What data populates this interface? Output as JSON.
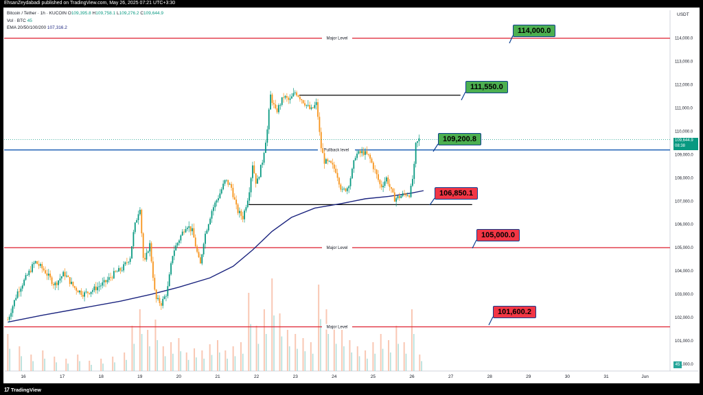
{
  "header": {
    "published": "EhsanZeydabadi published on TradingView.com, May 26, 2025 07:21 UTC+3:30"
  },
  "footer": {
    "brand": "TradingView",
    "logo_glyph": "17"
  },
  "legend": {
    "symbol": "Bitcoin / Tether · 1h · KUCOIN",
    "o_label": "O",
    "o": "109,395.8",
    "h_label": "H",
    "h": "109,758.1",
    "l_label": "L",
    "l": "109,276.2",
    "c_label": "C",
    "c": "109,644.9",
    "vol_label": "Vol · BTC",
    "vol": "45",
    "ema_label": "EMA 20/50/100/200",
    "ema": "107,316.2"
  },
  "currency": "USDT",
  "current_price": {
    "value": "109,644.9",
    "countdown": "08:38"
  },
  "volume_badge": "45",
  "colors": {
    "major": "#e0313f",
    "mid": "#1e5fb4",
    "ema": "#1a237e",
    "up": "#089981",
    "down": "#f7931a",
    "black": "#000000"
  },
  "chart_data": {
    "type": "candlestick",
    "y_axis": {
      "ylim": [
        99700,
        115200
      ],
      "ticks": [
        "114,000.0",
        "113,000.0",
        "112,000.0",
        "111,000.0",
        "110,000.0",
        "109,000.0",
        "108,000.0",
        "107,000.0",
        "106,000.0",
        "105,000.0",
        "104,000.0",
        "103,000.0",
        "102,000.0",
        "101,000.0",
        "100,000.0"
      ]
    },
    "x_axis": {
      "labels": [
        "16",
        "17",
        "18",
        "19",
        "20",
        "21",
        "22",
        "23",
        "24",
        "25",
        "26",
        "27",
        "28",
        "29",
        "30",
        "31",
        "Jun"
      ]
    },
    "horizontal_levels": [
      {
        "price": 114000,
        "label": "Major Level",
        "kind": "major"
      },
      {
        "price": 109200,
        "label": "Pullback level",
        "kind": "mid"
      },
      {
        "price": 105000,
        "label": "Major Level",
        "kind": "major"
      },
      {
        "price": 101600,
        "label": "Major Level",
        "kind": "major"
      }
    ],
    "segments": [
      {
        "price": 111550,
        "from_day": 23.1,
        "to_day": 27.25
      },
      {
        "price": 106850,
        "from_day": 21.8,
        "to_day": 27.55
      }
    ],
    "annotations": [
      {
        "text": "114,000.0",
        "price": 114000,
        "color": "green"
      },
      {
        "text": "111,550.0",
        "price": 111550,
        "color": "green"
      },
      {
        "text": "109,200.8",
        "price": 109200,
        "color": "green"
      },
      {
        "text": "106,850.1",
        "price": 106850,
        "color": "red"
      },
      {
        "text": "105,000.0",
        "price": 105000,
        "color": "red"
      },
      {
        "text": "101,600.2",
        "price": 101600,
        "color": "red"
      }
    ],
    "price_path": [
      [
        15.6,
        101900
      ],
      [
        15.85,
        103100
      ],
      [
        16.1,
        103800
      ],
      [
        16.3,
        104400
      ],
      [
        16.55,
        104000
      ],
      [
        16.8,
        103400
      ],
      [
        17.05,
        103900
      ],
      [
        17.3,
        103300
      ],
      [
        17.55,
        103000
      ],
      [
        17.8,
        103200
      ],
      [
        18.1,
        103500
      ],
      [
        18.35,
        103900
      ],
      [
        18.55,
        104100
      ],
      [
        18.75,
        104600
      ],
      [
        18.85,
        105800
      ],
      [
        19.0,
        106800
      ],
      [
        19.1,
        104200
      ],
      [
        19.25,
        105200
      ],
      [
        19.4,
        102800
      ],
      [
        19.55,
        102600
      ],
      [
        19.7,
        103100
      ],
      [
        19.85,
        104800
      ],
      [
        20.05,
        105500
      ],
      [
        20.2,
        106000
      ],
      [
        20.35,
        105700
      ],
      [
        20.55,
        104200
      ],
      [
        20.65,
        105400
      ],
      [
        20.85,
        106600
      ],
      [
        21.05,
        107300
      ],
      [
        21.2,
        107900
      ],
      [
        21.35,
        107600
      ],
      [
        21.5,
        106600
      ],
      [
        21.65,
        106300
      ],
      [
        21.8,
        107300
      ],
      [
        21.9,
        108600
      ],
      [
        22.0,
        107700
      ],
      [
        22.15,
        108700
      ],
      [
        22.3,
        110300
      ],
      [
        22.35,
        111600
      ],
      [
        22.5,
        110800
      ],
      [
        22.7,
        111500
      ],
      [
        22.85,
        111300
      ],
      [
        23.0,
        111700
      ],
      [
        23.2,
        111300
      ],
      [
        23.4,
        110900
      ],
      [
        23.55,
        111200
      ],
      [
        23.65,
        109400
      ],
      [
        23.75,
        108700
      ],
      [
        23.9,
        108600
      ],
      [
        24.05,
        108300
      ],
      [
        24.2,
        107400
      ],
      [
        24.35,
        107600
      ],
      [
        24.45,
        108200
      ],
      [
        24.55,
        109000
      ],
      [
        24.75,
        109100
      ],
      [
        24.9,
        108900
      ],
      [
        25.05,
        108300
      ],
      [
        25.2,
        107600
      ],
      [
        25.35,
        108000
      ],
      [
        25.45,
        107500
      ],
      [
        25.55,
        107100
      ],
      [
        25.7,
        107200
      ],
      [
        25.8,
        107300
      ],
      [
        25.95,
        107300
      ],
      [
        26.05,
        108300
      ],
      [
        26.1,
        109400
      ],
      [
        26.2,
        109700
      ]
    ],
    "ema_200": [
      [
        15.6,
        101800
      ],
      [
        16.5,
        102100
      ],
      [
        17.5,
        102400
      ],
      [
        18.5,
        102700
      ],
      [
        19.3,
        103000
      ],
      [
        20.0,
        103300
      ],
      [
        20.8,
        103700
      ],
      [
        21.4,
        104200
      ],
      [
        21.9,
        104900
      ],
      [
        22.4,
        105700
      ],
      [
        22.9,
        106300
      ],
      [
        23.5,
        106700
      ],
      [
        24.2,
        106900
      ],
      [
        24.8,
        107100
      ],
      [
        25.4,
        107200
      ],
      [
        26.0,
        107350
      ],
      [
        26.3,
        107450
      ]
    ],
    "volume": [
      [
        15.6,
        18
      ],
      [
        15.9,
        12
      ],
      [
        16.2,
        8
      ],
      [
        16.5,
        10
      ],
      [
        16.8,
        7
      ],
      [
        17.1,
        6
      ],
      [
        17.4,
        8
      ],
      [
        17.7,
        5
      ],
      [
        18.0,
        6
      ],
      [
        18.3,
        7
      ],
      [
        18.6,
        9
      ],
      [
        18.8,
        22
      ],
      [
        19.0,
        30
      ],
      [
        19.2,
        20
      ],
      [
        19.4,
        25
      ],
      [
        19.6,
        12
      ],
      [
        19.8,
        14
      ],
      [
        20.0,
        16
      ],
      [
        20.2,
        9
      ],
      [
        20.4,
        11
      ],
      [
        20.6,
        10
      ],
      [
        20.8,
        13
      ],
      [
        21.0,
        15
      ],
      [
        21.2,
        10
      ],
      [
        21.4,
        12
      ],
      [
        21.6,
        14
      ],
      [
        21.8,
        38
      ],
      [
        22.0,
        22
      ],
      [
        22.2,
        30
      ],
      [
        22.4,
        45
      ],
      [
        22.6,
        28
      ],
      [
        22.8,
        20
      ],
      [
        23.0,
        18
      ],
      [
        23.2,
        16
      ],
      [
        23.4,
        14
      ],
      [
        23.6,
        42
      ],
      [
        23.8,
        30
      ],
      [
        24.0,
        22
      ],
      [
        24.2,
        20
      ],
      [
        24.4,
        15
      ],
      [
        24.6,
        12
      ],
      [
        24.8,
        10
      ],
      [
        25.0,
        14
      ],
      [
        25.2,
        18
      ],
      [
        25.4,
        15
      ],
      [
        25.6,
        22
      ],
      [
        25.8,
        14
      ],
      [
        26.0,
        30
      ],
      [
        26.2,
        8
      ]
    ]
  }
}
